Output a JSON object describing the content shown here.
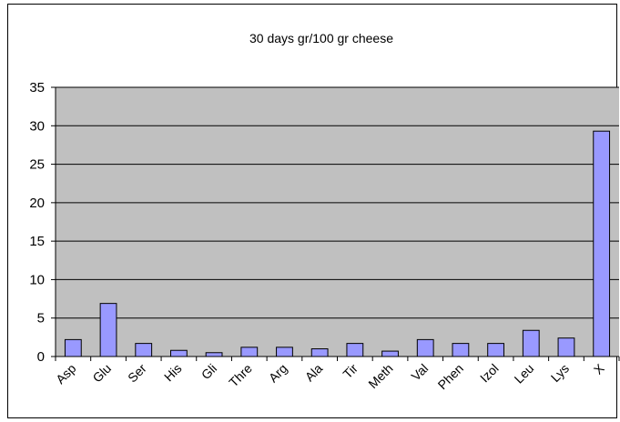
{
  "chart_data": {
    "type": "bar",
    "title": "30 days gr/100 gr cheese",
    "xlabel": "",
    "ylabel": "",
    "categories": [
      "Asp",
      "Glu",
      "Ser",
      "His",
      "Gli",
      "Thre",
      "Arg",
      "Ala",
      "Tir",
      "Meth",
      "Val",
      "Phen",
      "Izol",
      "Leu",
      "Lys",
      "X"
    ],
    "values": [
      2.2,
      6.9,
      1.7,
      0.8,
      0.5,
      1.2,
      1.2,
      1.0,
      1.7,
      0.7,
      2.2,
      1.7,
      1.7,
      3.4,
      2.4,
      29.3
    ],
    "ylim": [
      0,
      35
    ],
    "yticks": [
      0,
      5,
      10,
      15,
      20,
      25,
      30,
      35
    ],
    "grid": true,
    "legend": "none",
    "colors": {
      "bar_fill": "#9999ff",
      "bar_stroke": "#000000",
      "plot_background": "#c0c0c0",
      "gridline": "#000000"
    }
  }
}
